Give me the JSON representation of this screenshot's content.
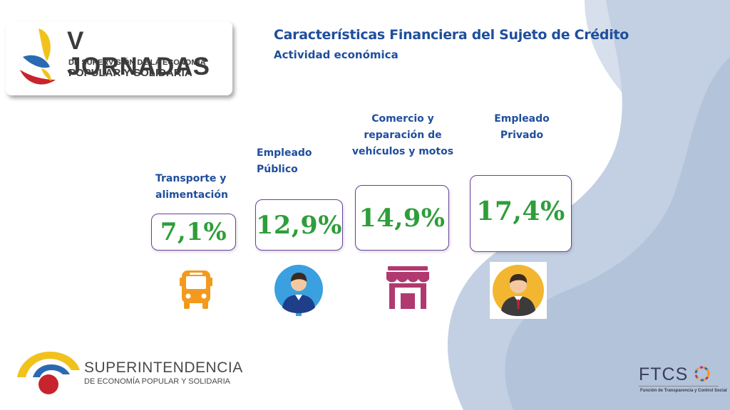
{
  "header": {
    "logo": {
      "title": "V JORNADAS",
      "line1": "DE SUPERVISIÓN DE LA ECONOMÍA",
      "line2": "POPULAR Y SOLIDARIA"
    },
    "title": "Características Financiera del Sujeto de Crédito",
    "subtitle": "Actividad económica"
  },
  "categories": [
    {
      "label": "Transporte y alimentación",
      "value": "7,1%",
      "icon": "bus-icon",
      "icon_color": "#f39a1e"
    },
    {
      "label": "Empleado Público",
      "value": "12,9%",
      "icon": "public-employee-icon",
      "icon_color": "#3aa0e0"
    },
    {
      "label": "Comercio y reparación de vehículos y motos",
      "value": "14,9%",
      "icon": "store-icon",
      "icon_color": "#b03a6f"
    },
    {
      "label": "Empleado Privado",
      "value": "17,4%",
      "icon": "private-employee-icon",
      "icon_color": "#f2b630"
    }
  ],
  "footer": {
    "org_name": "SUPERINTENDENCIA",
    "org_sub": "DE ECONOMÍA POPULAR Y SOLIDARIA",
    "partner_logo": "FTCS",
    "partner_caption": "Función de Transparencia y Control Social"
  },
  "colors": {
    "title": "#1f4e9c",
    "value": "#2e9e3a",
    "box_border": "#6a3fa0",
    "background_shape": "#b9c8dd"
  }
}
